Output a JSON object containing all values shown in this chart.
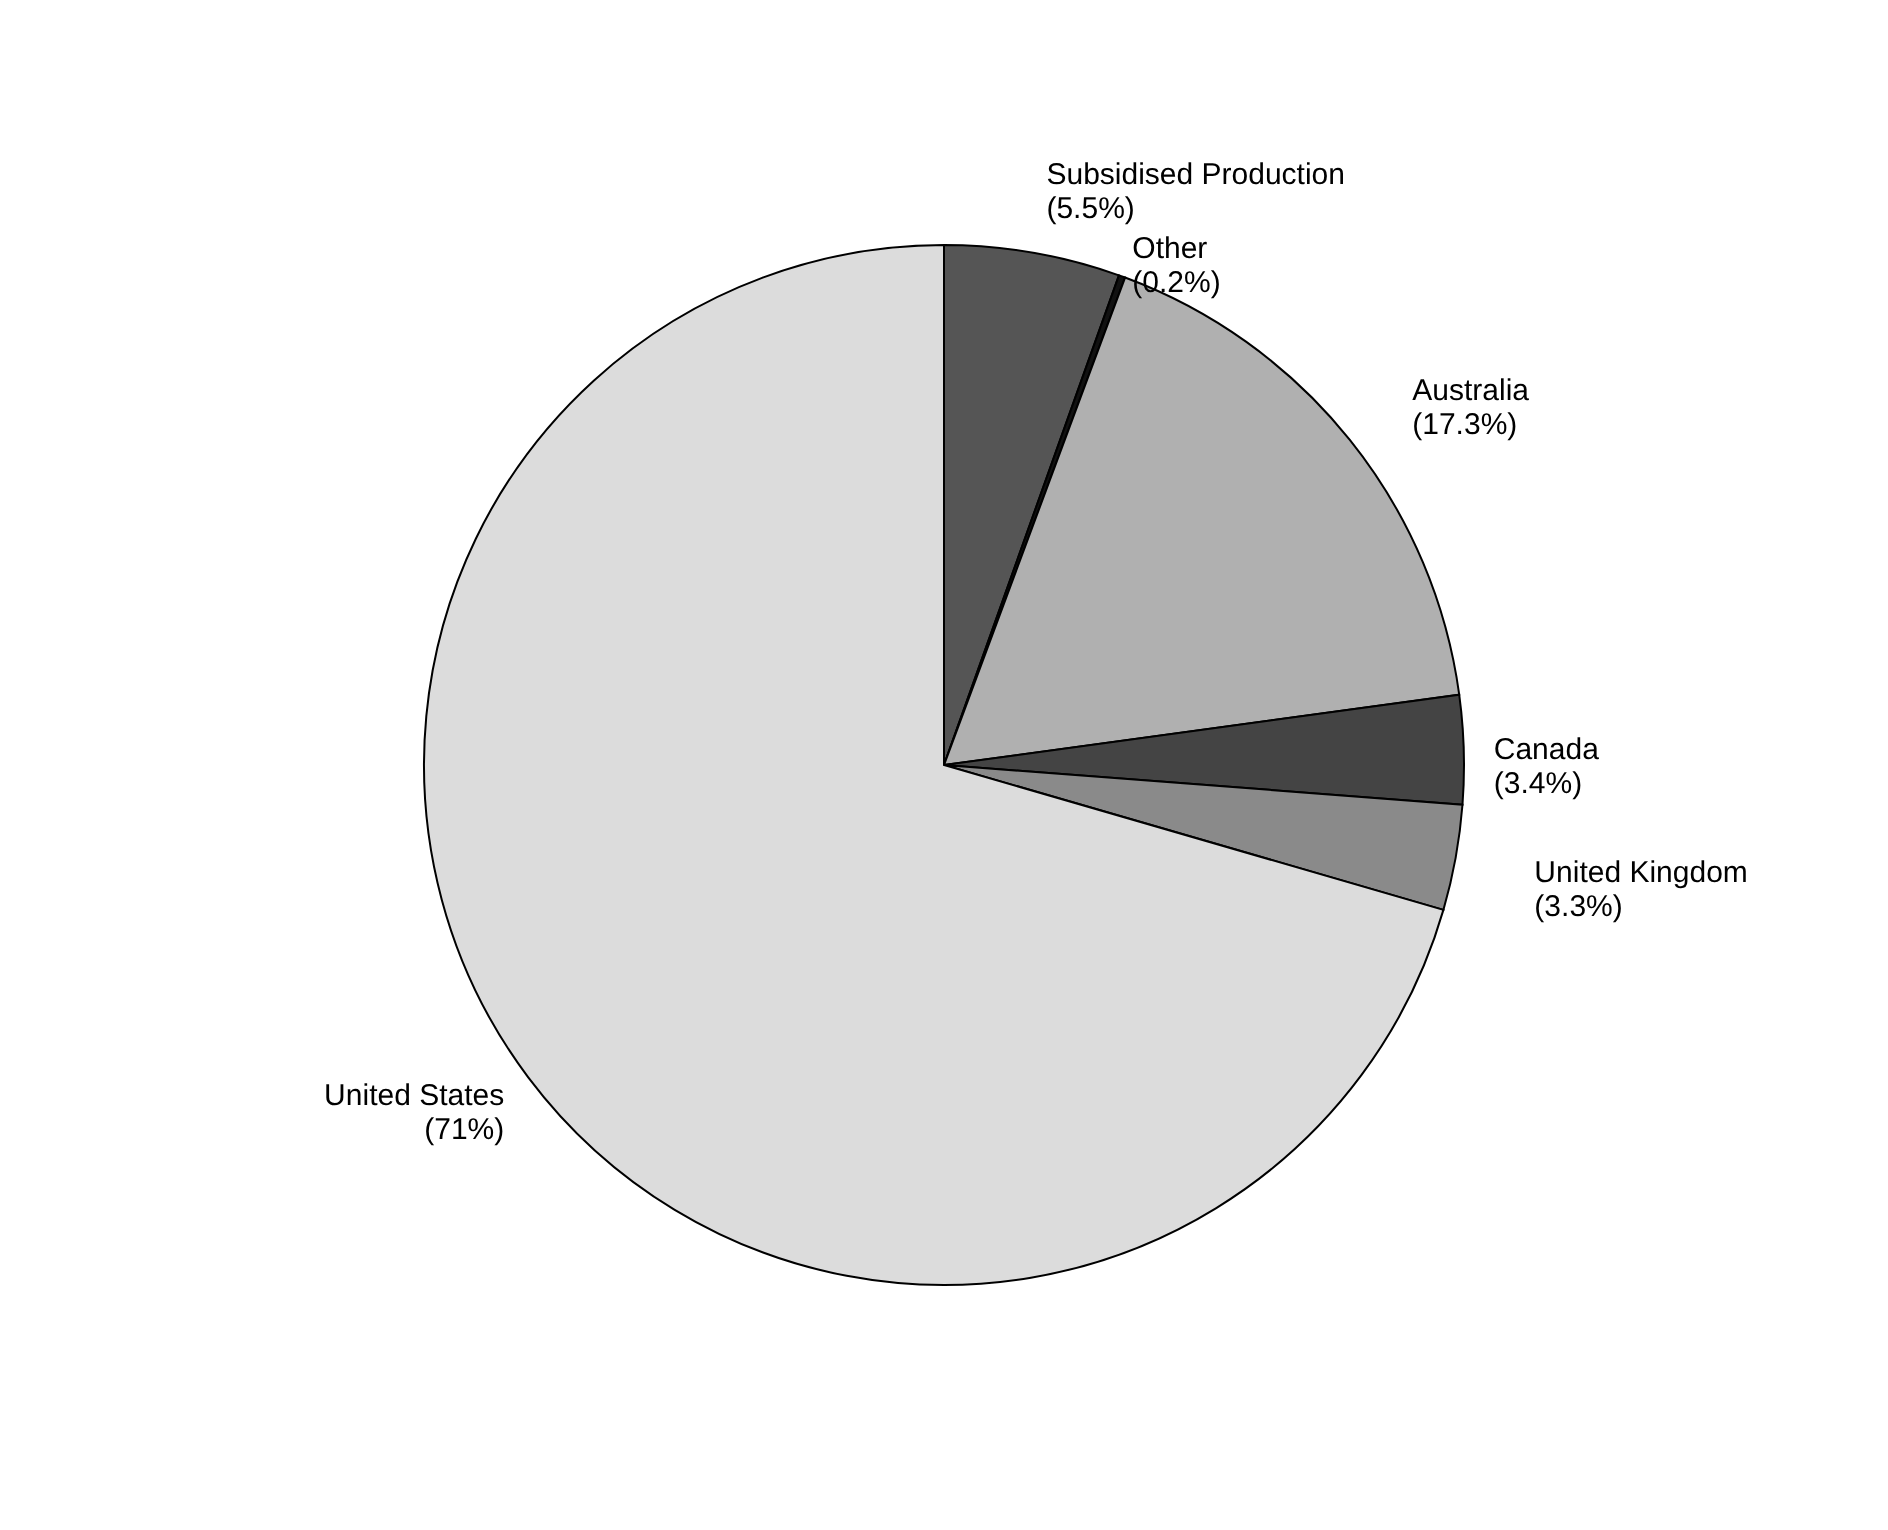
{
  "chart_data": {
    "type": "pie",
    "categories": [
      "Subsidised Production",
      "Other",
      "Australia",
      "Canada",
      "United Kingdom",
      "United States"
    ],
    "values": [
      5.5,
      0.2,
      17.3,
      3.4,
      3.3,
      71
    ],
    "value_labels": [
      "(5.5%)",
      "(0.2%)",
      "(17.3%)",
      "(3.4%)",
      "(3.3%)",
      "(71%)"
    ],
    "colors": [
      "#555555",
      "#111111",
      "#b0b0b0",
      "#444444",
      "#8a8a8a",
      "#dcdcdc"
    ]
  }
}
